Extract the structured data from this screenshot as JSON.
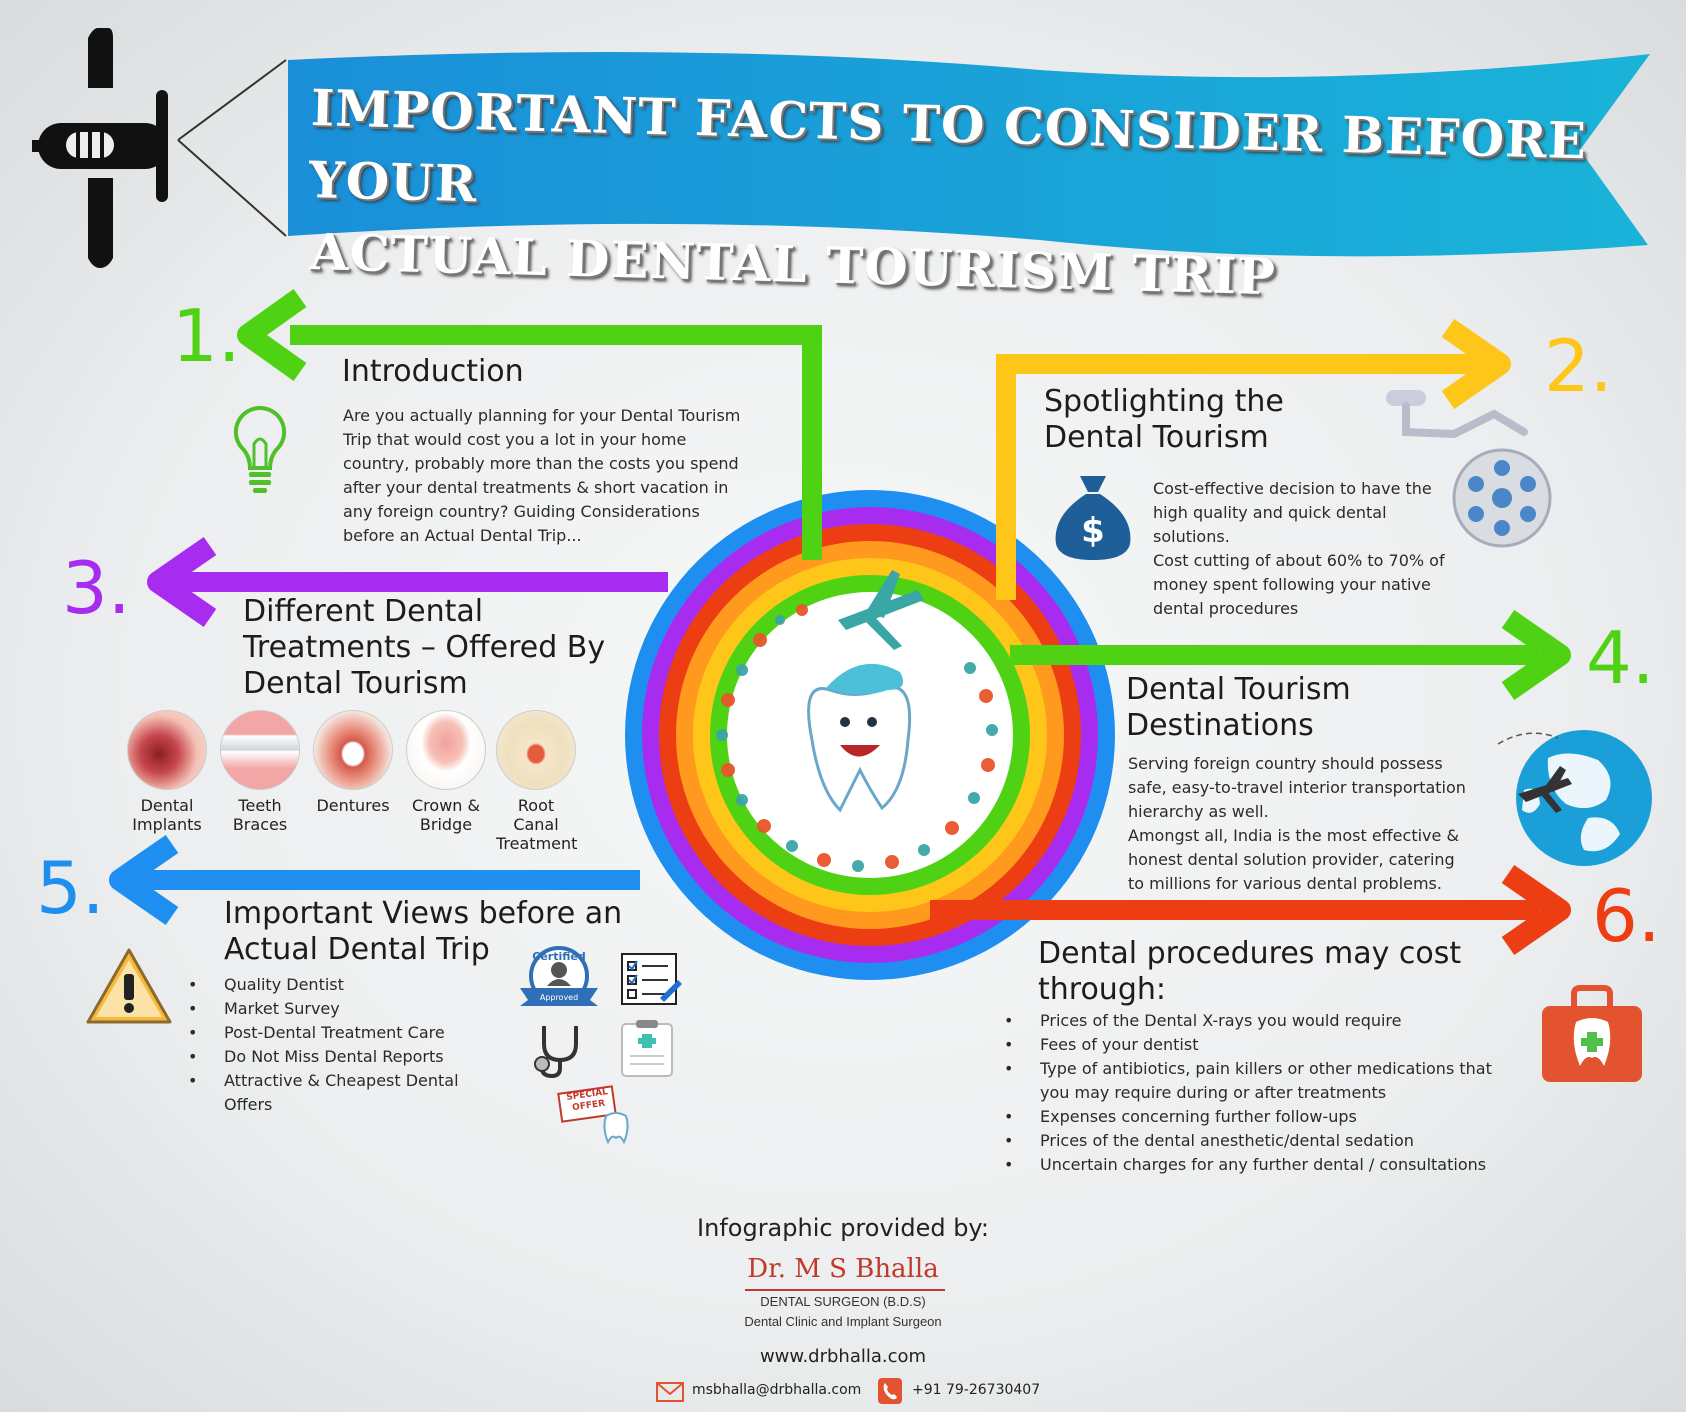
{
  "header": {
    "title_line1": "IMPORTANT FACTS TO CONSIDER BEFORE YOUR",
    "title_line2": "ACTUAL DENTAL TOURISM TRIP"
  },
  "sections": [
    {
      "number": "1.",
      "title": "Introduction",
      "body": "Are you actually planning for your Dental Tourism Trip that would cost you a lot in your home country, probably more than the costs you spend after your dental treatments & short vacation in any foreign country? Guiding Considerations before an Actual Dental Trip...",
      "color": "#4fd214"
    },
    {
      "number": "2.",
      "title": "Spotlighting the Dental Tourism",
      "body1": "Cost-effective decision to have the high quality and quick dental solutions.",
      "body2": "Cost cutting of about 60% to 70% of money spent following your native dental procedures",
      "color": "#ffc61a"
    },
    {
      "number": "3.",
      "title": "Different Dental Treatments – Offered By Dental Tourism",
      "treatments": [
        "Dental Implants",
        "Teeth Braces",
        "Dentures",
        "Crown & Bridge",
        "Root Canal Treatment"
      ],
      "color": "#a82cf0"
    },
    {
      "number": "4.",
      "title": "Dental Tourism Destinations",
      "body1": "Serving foreign country should possess safe, easy-to-travel interior transportation hierarchy as well.",
      "body2": "Amongst all, India is the most effective & honest dental solution provider, catering to millions for various dental problems.",
      "color": "#4fd214"
    },
    {
      "number": "5.",
      "title": "Important Views before an Actual Dental Trip",
      "bullets": [
        "Quality Dentist",
        "Market Survey",
        "Post-Dental Treatment Care",
        "Do Not Miss Dental Reports",
        "Attractive & Cheapest Dental Offers"
      ],
      "badge_text": "Certified",
      "badge_sub": "Approved",
      "stamp_text": "SPECIAL OFFER",
      "color": "#1e8ff0"
    },
    {
      "number": "6.",
      "title": "Dental procedures may cost through:",
      "bullets": [
        "Prices of the Dental X-rays you would require",
        "Fees of your dentist",
        "Type of antibiotics, pain killers or other medications that you may require during or after treatments",
        "Expenses concerning further follow-ups",
        "Prices of the dental anesthetic/dental sedation",
        "Uncertain charges for any further dental / consultations"
      ],
      "color": "#ec3e12"
    }
  ],
  "footer": {
    "provided_by": "Infographic provided by:",
    "doctor_name": "Dr. M S Bhalla",
    "qualification": "DENTAL SURGEON (B.D.S)",
    "clinic": "Dental Clinic and Implant Surgeon",
    "website": "www.drbhalla.com",
    "email": "msbhalla@drbhalla.com",
    "phone": "+91 79-26730407"
  },
  "icons": [
    "airplane-icon",
    "lightbulb-icon",
    "money-bag-icon",
    "surgical-lamp-icon",
    "globe-icon",
    "warning-icon",
    "first-aid-kit-icon",
    "stethoscope-icon",
    "checklist-icon",
    "clipboard-icon",
    "email-icon",
    "phone-icon"
  ],
  "colors": {
    "banner": "#1a8fd8",
    "green": "#4fd214",
    "yellow": "#ffc61a",
    "purple": "#a82cf0",
    "blue": "#1e8ff0",
    "red": "#ec3e12",
    "orange": "#ff9a1e"
  }
}
